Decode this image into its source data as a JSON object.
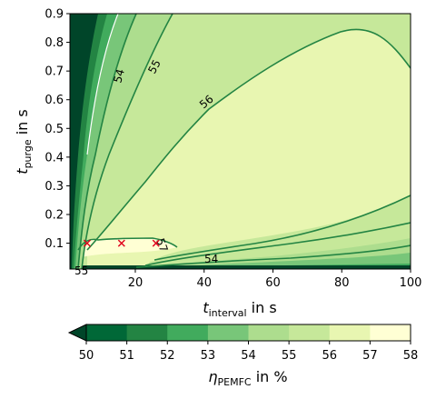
{
  "chart_data": {
    "type": "contour",
    "x": {
      "label_main": "t",
      "label_sub": "interval",
      "label_unit": " in s",
      "lim": [
        1,
        100
      ],
      "ticks": [
        20,
        40,
        60,
        80,
        100
      ]
    },
    "y": {
      "label_main": "t",
      "label_sub": "purge",
      "label_unit": " in s",
      "lim": [
        0.01,
        0.9
      ],
      "ticks": [
        0.1,
        0.2,
        0.3,
        0.4,
        0.5,
        0.6,
        0.7,
        0.8,
        0.9
      ]
    },
    "contour_levels": [
      50,
      51,
      52,
      53,
      54,
      55,
      56,
      57,
      58
    ],
    "contour_labels": [
      "54",
      "55",
      "56",
      "57",
      "54",
      "55"
    ],
    "markers": [
      {
        "x": 6,
        "y": 0.1
      },
      {
        "x": 16,
        "y": 0.1
      },
      {
        "x": 26,
        "y": 0.1
      }
    ],
    "colorbar": {
      "ticks": [
        "50",
        "51",
        "52",
        "53",
        "54",
        "55",
        "56",
        "57",
        "58"
      ],
      "label_main": "η",
      "label_sub": "PEMFC",
      "label_unit": " in %",
      "extend": "min"
    },
    "colors": {
      "below50": "#004529",
      "c50_51": "#006837",
      "c51_52": "#238443",
      "c52_53": "#41ab5d",
      "c53_54": "#78c679",
      "c54_55": "#addd8e",
      "c55_56": "#c6e89a",
      "c56_57": "#e8f6b1",
      "c57_58": "#ffffd4",
      "line": "#238443",
      "marker": "#e0001b"
    }
  }
}
